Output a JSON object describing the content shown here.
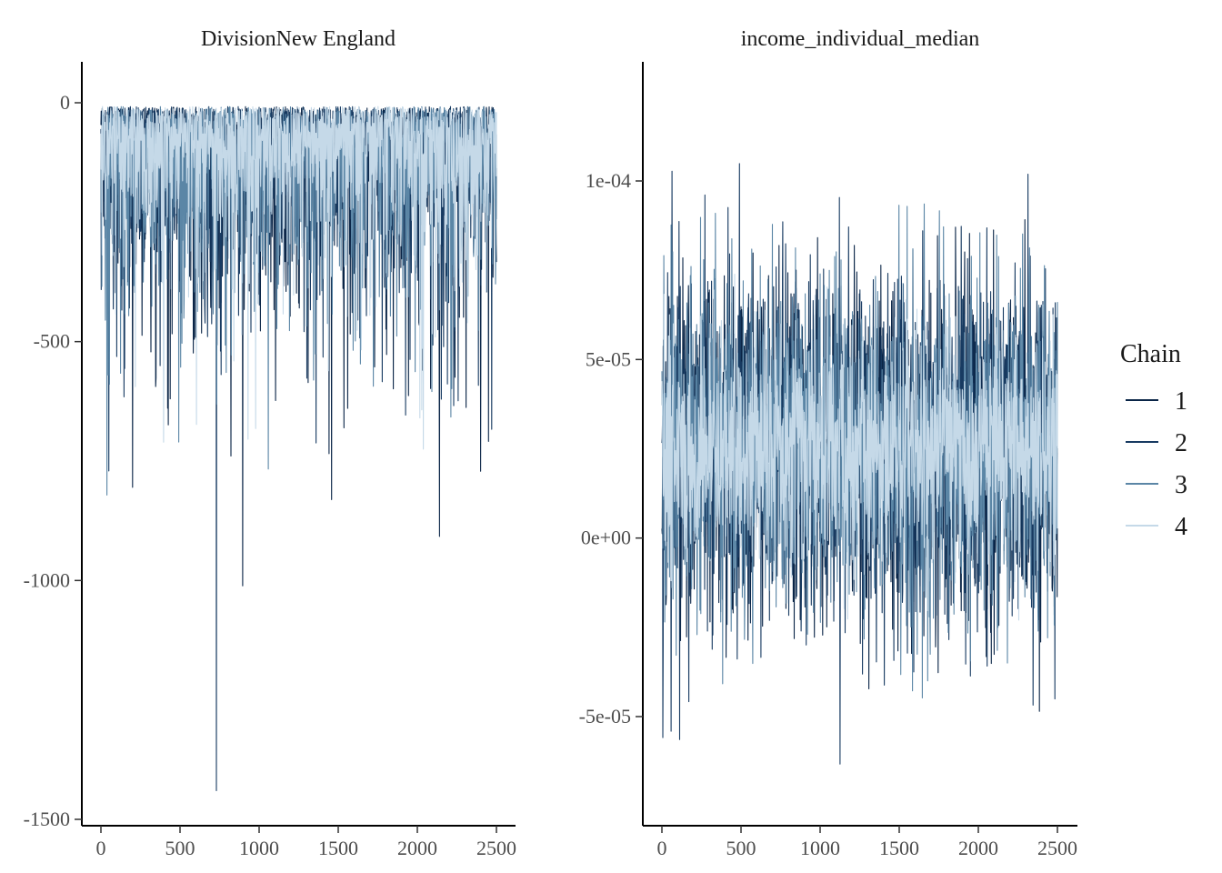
{
  "chart_data": [
    {
      "type": "line",
      "title": "DivisionNew England",
      "xlabel": "",
      "ylabel": "",
      "xlim": [
        0,
        2500
      ],
      "ylim": [
        -1500,
        0
      ],
      "x_ticks": [
        0,
        500,
        1000,
        1500,
        2000,
        2500
      ],
      "x_tick_labels": [
        "0",
        "500",
        "1000",
        "1500",
        "2000",
        "2500"
      ],
      "y_ticks": [
        0,
        -500,
        -1000,
        -1500
      ],
      "y_tick_labels": [
        "0",
        "-500",
        "-1000",
        "-1500"
      ],
      "iterations": 2500,
      "series_summary": {
        "typical_range": [
          -260,
          -10
        ],
        "max": 12,
        "min": -1440,
        "min_at": 730
      },
      "grid": false
    },
    {
      "type": "line",
      "title": "income_individual_median",
      "xlabel": "",
      "ylabel": "",
      "xlim": [
        0,
        2500
      ],
      "ylim": [
        -7e-05,
        0.0001
      ],
      "x_ticks": [
        0,
        500,
        1000,
        1500,
        2000,
        2500
      ],
      "x_tick_labels": [
        "0",
        "500",
        "1000",
        "1500",
        "2000",
        "2500"
      ],
      "y_ticks": [
        0.0001,
        5e-05,
        0,
        -5e-05
      ],
      "y_tick_labels": [
        "1e-04",
        "5e-05",
        "0e+00",
        "-5e-05"
      ],
      "iterations": 2500,
      "series_summary": {
        "mean": 2.5e-05,
        "typical_range": [
          -2e-05,
          7e-05
        ],
        "max": 0.000124,
        "min": -7e-05
      },
      "grid": false
    }
  ],
  "legend": {
    "title": "Chain",
    "placement": "right",
    "items": [
      {
        "label": "1",
        "color": "#0a2547"
      },
      {
        "label": "2",
        "color": "#183b62"
      },
      {
        "label": "3",
        "color": "#5b86a6"
      },
      {
        "label": "4",
        "color": "#c5d9e8"
      }
    ]
  }
}
